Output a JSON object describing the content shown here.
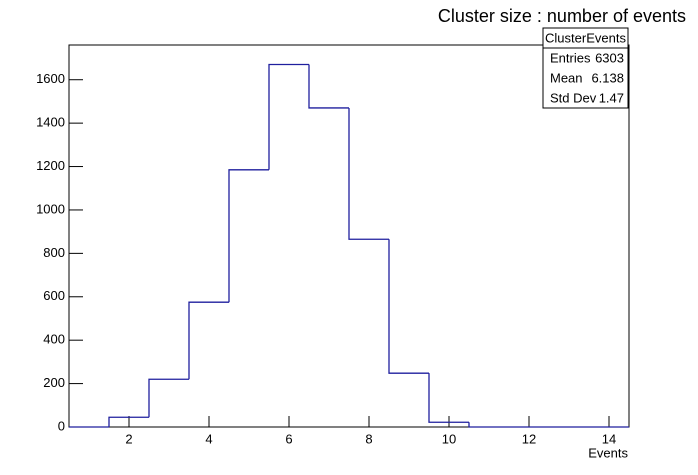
{
  "chart_data": {
    "type": "histogram",
    "title": "Cluster size : number of events",
    "x_label": "Events",
    "bins": [
      0.5,
      1.5,
      2.5,
      3.5,
      4.5,
      5.5,
      6.5,
      7.5,
      8.5,
      9.5,
      10.5,
      11.5,
      12.5,
      13.5,
      14.5
    ],
    "values": [
      0,
      45,
      220,
      575,
      1185,
      1670,
      1470,
      865,
      248,
      22,
      0,
      0,
      0,
      0
    ],
    "color": "#1f1f9e",
    "xlim": [
      0.5,
      14.5
    ],
    "xticks": [
      2,
      4,
      6,
      8,
      10,
      12,
      14
    ],
    "ylim": [
      0,
      1760
    ],
    "yticks": [
      0,
      200,
      400,
      600,
      800,
      1000,
      1200,
      1400,
      1600
    ],
    "stats": {
      "title": "ClusterEvents",
      "rows": [
        [
          "Entries",
          6303
        ],
        [
          "Mean",
          6.138
        ],
        [
          "Std Dev",
          1.47
        ]
      ]
    }
  }
}
